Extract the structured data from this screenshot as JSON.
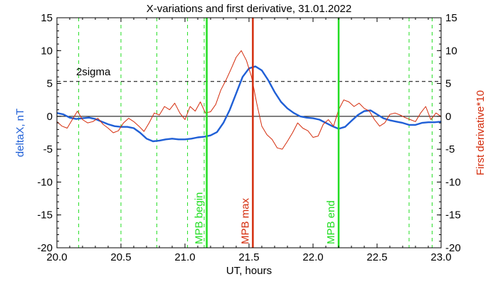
{
  "chart_data": {
    "type": "line",
    "title": "X-variations and first derivative, 31.01.2022",
    "xlabel": "UT, hours",
    "ylabel_left": "deltaX, nT",
    "ylabel_right": "First derivative*10",
    "xlim": [
      20.0,
      23.0
    ],
    "ylim": [
      -20,
      15
    ],
    "xticks": [
      "20.0",
      "20.5",
      "21.0",
      "21.5",
      "22.0",
      "22.5",
      "23.0"
    ],
    "yticks": [
      "15",
      "10",
      "5",
      "0",
      "-5",
      "-10",
      "-15",
      "-20"
    ],
    "colors": {
      "deltaX": "#1f5fd6",
      "derivative": "#d42c0c",
      "markers_green": "#22dd22",
      "marker_red": "#d42c0c"
    },
    "sigma": {
      "label": "2sigma",
      "value": 5.3
    },
    "dashed_green_lines": [
      20.17,
      20.5,
      20.78,
      21.02,
      21.15,
      22.75,
      22.93
    ],
    "markers": [
      {
        "label": "MPB begin",
        "x": 21.17,
        "color": "green"
      },
      {
        "label": "MPB max",
        "x": 21.53,
        "color": "red"
      },
      {
        "label": "MPB end",
        "x": 22.2,
        "color": "green"
      }
    ],
    "series": [
      {
        "key": "deltaX",
        "x": [
          20.0,
          20.05,
          20.1,
          20.15,
          20.2,
          20.25,
          20.3,
          20.35,
          20.4,
          20.45,
          20.5,
          20.55,
          20.6,
          20.65,
          20.7,
          20.75,
          20.8,
          20.85,
          20.9,
          20.95,
          21.0,
          21.05,
          21.1,
          21.15,
          21.2,
          21.25,
          21.3,
          21.35,
          21.4,
          21.45,
          21.5,
          21.55,
          21.6,
          21.65,
          21.7,
          21.75,
          21.8,
          21.85,
          21.9,
          21.95,
          22.0,
          22.05,
          22.1,
          22.15,
          22.2,
          22.25,
          22.3,
          22.35,
          22.4,
          22.45,
          22.5,
          22.55,
          22.6,
          22.65,
          22.7,
          22.75,
          22.8,
          22.85,
          22.9,
          22.95,
          23.0
        ],
        "values": [
          0.5,
          0.3,
          -0.2,
          -0.4,
          -0.3,
          -0.2,
          -0.4,
          -0.8,
          -1.2,
          -1.5,
          -1.6,
          -1.6,
          -1.8,
          -2.5,
          -3.4,
          -3.8,
          -3.7,
          -3.5,
          -3.4,
          -3.5,
          -3.5,
          -3.4,
          -3.2,
          -3.1,
          -2.9,
          -2.4,
          -1.0,
          1.0,
          3.5,
          6.0,
          7.3,
          7.6,
          7.0,
          5.5,
          3.7,
          2.2,
          1.2,
          0.5,
          0.0,
          -0.2,
          -0.3,
          -0.5,
          -1.0,
          -1.5,
          -1.9,
          -1.6,
          -0.7,
          0.2,
          0.8,
          0.9,
          0.3,
          -0.3,
          -0.6,
          -0.8,
          -1.0,
          -1.3,
          -1.3,
          -1.0,
          -0.9,
          -0.9,
          -0.8
        ]
      },
      {
        "key": "derivative",
        "x": [
          20.0,
          20.04,
          20.08,
          20.12,
          20.16,
          20.2,
          20.24,
          20.28,
          20.32,
          20.36,
          20.4,
          20.44,
          20.48,
          20.52,
          20.56,
          20.6,
          20.64,
          20.68,
          20.72,
          20.76,
          20.8,
          20.84,
          20.88,
          20.92,
          20.96,
          21.0,
          21.04,
          21.08,
          21.12,
          21.16,
          21.2,
          21.24,
          21.28,
          21.32,
          21.36,
          21.4,
          21.44,
          21.48,
          21.52,
          21.56,
          21.6,
          21.64,
          21.68,
          21.72,
          21.76,
          21.8,
          21.84,
          21.88,
          21.92,
          21.96,
          22.0,
          22.04,
          22.08,
          22.12,
          22.16,
          22.2,
          22.24,
          22.28,
          22.32,
          22.36,
          22.4,
          22.44,
          22.48,
          22.52,
          22.56,
          22.6,
          22.64,
          22.68,
          22.72,
          22.76,
          22.8,
          22.84,
          22.88,
          22.92,
          22.96,
          23.0
        ],
        "values": [
          -0.8,
          -1.5,
          -1.8,
          -0.5,
          0.8,
          -0.5,
          -1.0,
          -0.8,
          -0.3,
          -1.2,
          -1.8,
          -2.5,
          -2.2,
          -1.0,
          -0.3,
          -0.8,
          -1.5,
          -2.3,
          -1.0,
          0.5,
          0.2,
          1.5,
          1.0,
          2.0,
          0.5,
          -0.5,
          1.5,
          0.8,
          2.2,
          0.5,
          0.7,
          1.8,
          4.0,
          5.5,
          7.2,
          9.0,
          10.0,
          8.5,
          6.0,
          2.0,
          -1.5,
          -2.8,
          -3.5,
          -4.8,
          -5.0,
          -3.8,
          -2.5,
          -1.0,
          -1.8,
          -2.2,
          -3.2,
          -3.0,
          -1.2,
          -0.5,
          -1.5,
          1.0,
          2.5,
          2.2,
          1.5,
          2.0,
          1.2,
          0.8,
          -0.5,
          -1.5,
          -1.0,
          0.3,
          0.5,
          0.2,
          -0.2,
          -0.5,
          -0.8,
          0.5,
          1.5,
          -0.5,
          0.5,
          0.0
        ]
      }
    ]
  }
}
